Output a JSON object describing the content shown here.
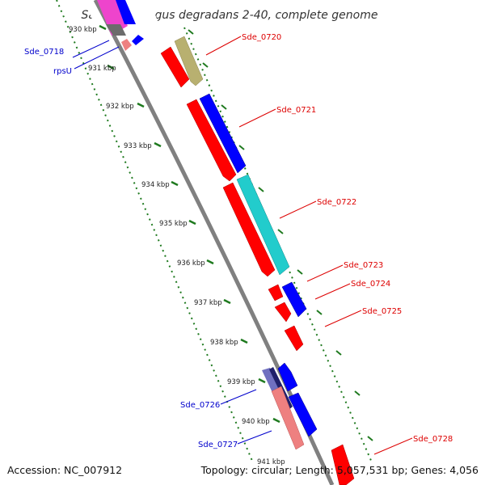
{
  "title": "Saccharophagus degradans 2-40, complete genome",
  "colors": {
    "backbone": "#808080",
    "ticks": "#1f7a1f",
    "forward_label": "#dd0000",
    "reverse_label": "#0000cc",
    "red": "#ff0000",
    "blue": "#0000ff",
    "olive": "#b8b070",
    "cyan": "#22cccc",
    "pink": "#ee8080",
    "magenta": "#ee44cc",
    "purple": "#7070c0"
  },
  "ticks": [
    "930 kbp",
    "931 kbp",
    "932 kbp",
    "933 kbp",
    "934 kbp",
    "935 kbp",
    "936 kbp",
    "937 kbp",
    "938 kbp",
    "939 kbp",
    "940 kbp",
    "941 kbp"
  ],
  "labels": {
    "sde_0718": "Sde_0718",
    "rpsU": "rpsU",
    "sde_0720": "Sde_0720",
    "sde_0721": "Sde_0721",
    "sde_0722": "Sde_0722",
    "sde_0723": "Sde_0723",
    "sde_0724": "Sde_0724",
    "sde_0725": "Sde_0725",
    "sde_0726": "Sde_0726",
    "sde_0727": "Sde_0727",
    "sde_0728": "Sde_0728"
  },
  "footer": {
    "accession": "Accession: NC_007912",
    "stats": "Topology: circular; Length: 5,057,531 bp; Genes: 4,056"
  }
}
